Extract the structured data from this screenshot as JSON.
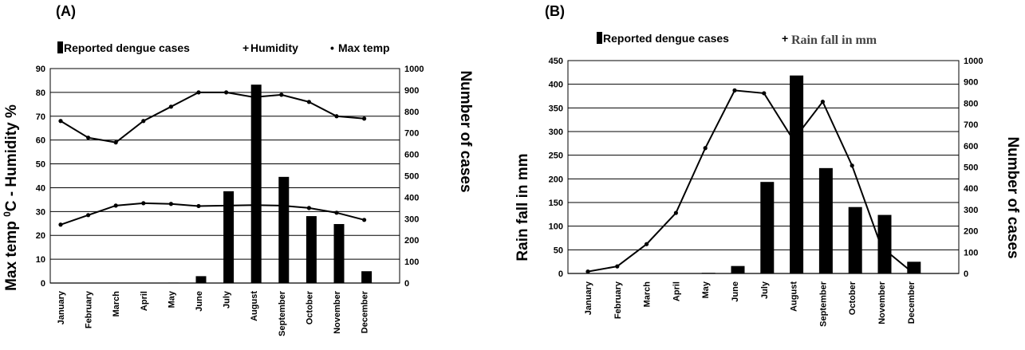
{
  "chart_data": [
    {
      "type": "bar",
      "panel_label": "(A)",
      "categories": [
        "January",
        "February",
        "March",
        "April",
        "May",
        "June",
        "July",
        "August",
        "September",
        "October",
        "November",
        "December"
      ],
      "ylabel_left_main": "Max temp ",
      "ylabel_left_sup": "0",
      "ylabel_left_rest": "C - Humidity %",
      "ylabel_right": "Number of cases",
      "ylim_left": [
        0,
        90
      ],
      "ylim_right": [
        0,
        1000
      ],
      "left_ticks": [
        0,
        10,
        20,
        30,
        40,
        50,
        60,
        70,
        80,
        90
      ],
      "right_ticks": [
        0,
        100,
        200,
        300,
        400,
        500,
        600,
        700,
        800,
        900,
        1000
      ],
      "grid": true,
      "legend": [
        "Reported dengue cases",
        "Humidity",
        "Max temp"
      ],
      "series": [
        {
          "name": "Reported dengue cases",
          "type": "bar",
          "axis": "right",
          "values": [
            0,
            0,
            0,
            0,
            2,
            32,
            428,
            925,
            495,
            312,
            275,
            55
          ]
        },
        {
          "name": "Humidity",
          "type": "line",
          "axis": "left",
          "values": [
            68,
            61,
            59,
            68,
            74,
            80,
            80,
            78,
            79,
            76,
            70,
            69
          ]
        },
        {
          "name": "Max temp",
          "type": "line",
          "axis": "left",
          "values": [
            24.5,
            28.5,
            32.5,
            33.5,
            33.2,
            32.3,
            32.5,
            32.7,
            32.5,
            31.5,
            29.5,
            26.5
          ]
        }
      ]
    },
    {
      "type": "bar",
      "panel_label": "(B)",
      "categories": [
        "January",
        "February",
        "March",
        "April",
        "May",
        "June",
        "July",
        "August",
        "September",
        "October",
        "November",
        "December"
      ],
      "ylabel_left": "Rain fall in mm",
      "ylabel_right": "Number of cases",
      "ylim_left": [
        0,
        450
      ],
      "ylim_right": [
        0,
        1000
      ],
      "left_ticks": [
        0,
        50,
        100,
        150,
        200,
        250,
        300,
        350,
        400,
        450
      ],
      "right_ticks": [
        0,
        100,
        200,
        300,
        400,
        500,
        600,
        700,
        800,
        900,
        1000
      ],
      "grid": true,
      "legend": [
        "Reported dengue cases",
        "Rain fall in mm"
      ],
      "series": [
        {
          "name": "Reported dengue cases",
          "type": "bar",
          "axis": "right",
          "values": [
            0,
            0,
            0,
            0,
            3,
            35,
            430,
            930,
            495,
            312,
            275,
            55
          ]
        },
        {
          "name": "Rain fall in mm",
          "type": "line",
          "axis": "left",
          "values": [
            4,
            15,
            62,
            128,
            265,
            387,
            381,
            282,
            363,
            228,
            56,
            5
          ]
        }
      ]
    }
  ]
}
